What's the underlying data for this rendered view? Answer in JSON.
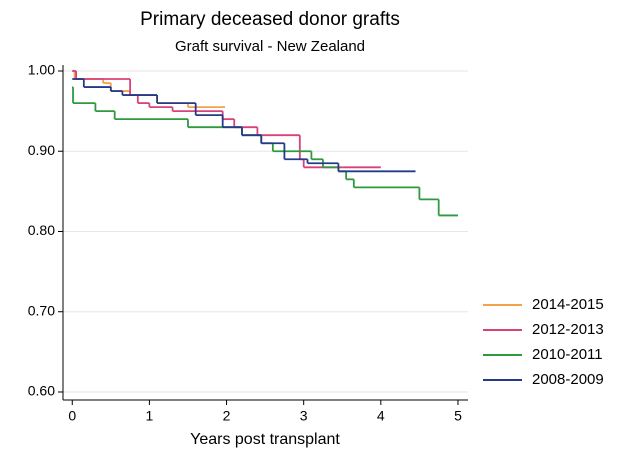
{
  "chart_data": {
    "type": "step",
    "title": "Primary deceased donor grafts",
    "subtitle": "Graft survival - New Zealand",
    "x_label": "Years post transplant",
    "xlim": [
      -0.12,
      5.13
    ],
    "ylim": [
      0.59,
      1.0
    ],
    "xticks": [
      0,
      1,
      2,
      3,
      4,
      5
    ],
    "yticks": [
      {
        "value": 0.6,
        "label": "0.60"
      },
      {
        "value": 0.7,
        "label": "0.70"
      },
      {
        "value": 0.8,
        "label": "0.80"
      },
      {
        "value": 0.9,
        "label": "0.90"
      },
      {
        "value": 1.0,
        "label": "1.00"
      }
    ],
    "grid": true,
    "legend": "right",
    "series": [
      {
        "name": "2014-2015",
        "color": "#f4a24a",
        "x": [
          0,
          0.03,
          0.4,
          0.5,
          0.75,
          1.1,
          1.5,
          1.98
        ],
        "values": [
          1.0,
          0.99,
          0.985,
          0.975,
          0.97,
          0.96,
          0.955,
          0.955
        ]
      },
      {
        "name": "2012-2013",
        "color": "#d9417a",
        "x": [
          0,
          0.05,
          0.75,
          0.85,
          1.0,
          1.3,
          1.6,
          1.95,
          2.1,
          2.4,
          2.95,
          3.0,
          3.5,
          4.0
        ],
        "values": [
          1.0,
          0.99,
          0.97,
          0.96,
          0.955,
          0.95,
          0.95,
          0.94,
          0.93,
          0.92,
          0.89,
          0.88,
          0.88,
          0.88
        ]
      },
      {
        "name": "2010-2011",
        "color": "#2e9a3e",
        "x": [
          0,
          0.01,
          0.3,
          0.55,
          1.5,
          2.2,
          2.45,
          2.6,
          3.1,
          3.25,
          3.45,
          3.55,
          3.65,
          4.5,
          4.75,
          5.0
        ],
        "values": [
          0.98,
          0.96,
          0.95,
          0.94,
          0.93,
          0.92,
          0.91,
          0.9,
          0.89,
          0.88,
          0.875,
          0.865,
          0.855,
          0.84,
          0.82,
          0.82
        ]
      },
      {
        "name": "2008-2009",
        "color": "#253a8a",
        "x": [
          0,
          0.15,
          0.5,
          0.65,
          1.1,
          1.6,
          1.95,
          2.2,
          2.45,
          2.75,
          3.05,
          3.45,
          4.45
        ],
        "values": [
          0.99,
          0.98,
          0.975,
          0.97,
          0.96,
          0.945,
          0.93,
          0.92,
          0.91,
          0.89,
          0.885,
          0.875,
          0.875
        ]
      }
    ]
  }
}
